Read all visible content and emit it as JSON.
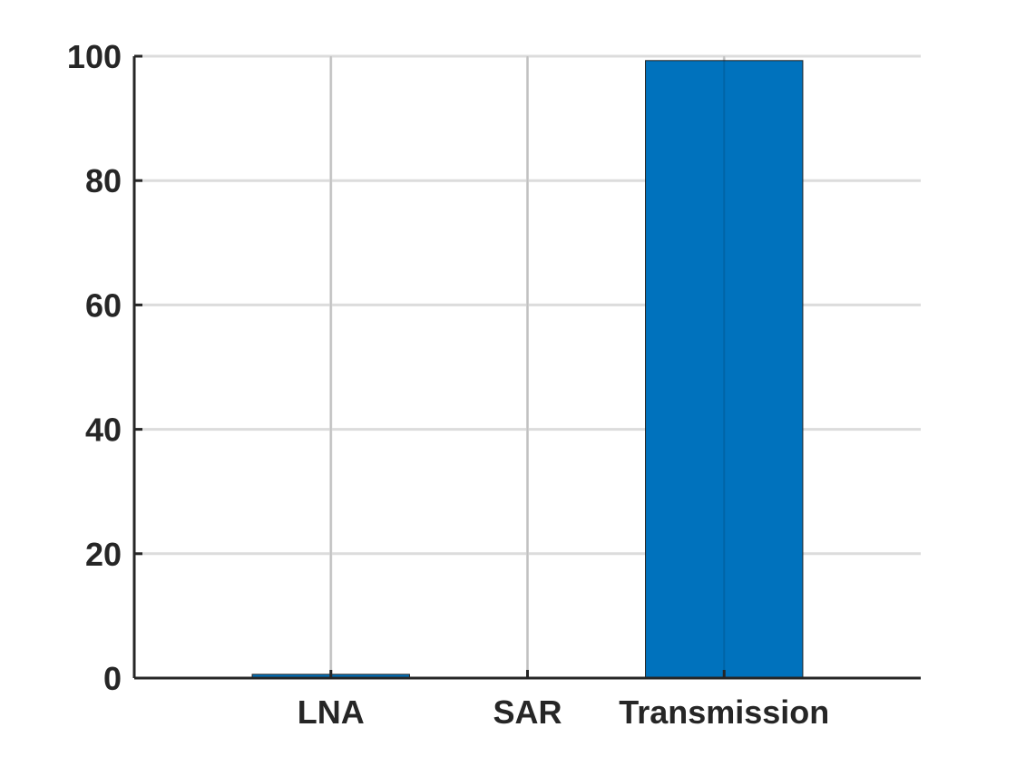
{
  "chart_data": {
    "type": "bar",
    "categories": [
      "LNA",
      "SAR",
      "Transmission"
    ],
    "values": [
      0.6,
      0.1,
      99.3
    ],
    "xlim": [
      0,
      4
    ],
    "ylim": [
      0,
      100
    ],
    "yticks": [
      0,
      20,
      40,
      60,
      80,
      100
    ],
    "ytick_labels": [
      "0",
      "20",
      "40",
      "60",
      "80",
      "100"
    ],
    "grid": true,
    "bar_color": "#0072BD",
    "bar_edge_color": "#1f1f1f",
    "grid_color": "#dcdcdc",
    "axis_color": "#262626",
    "text_color": "#262626"
  }
}
